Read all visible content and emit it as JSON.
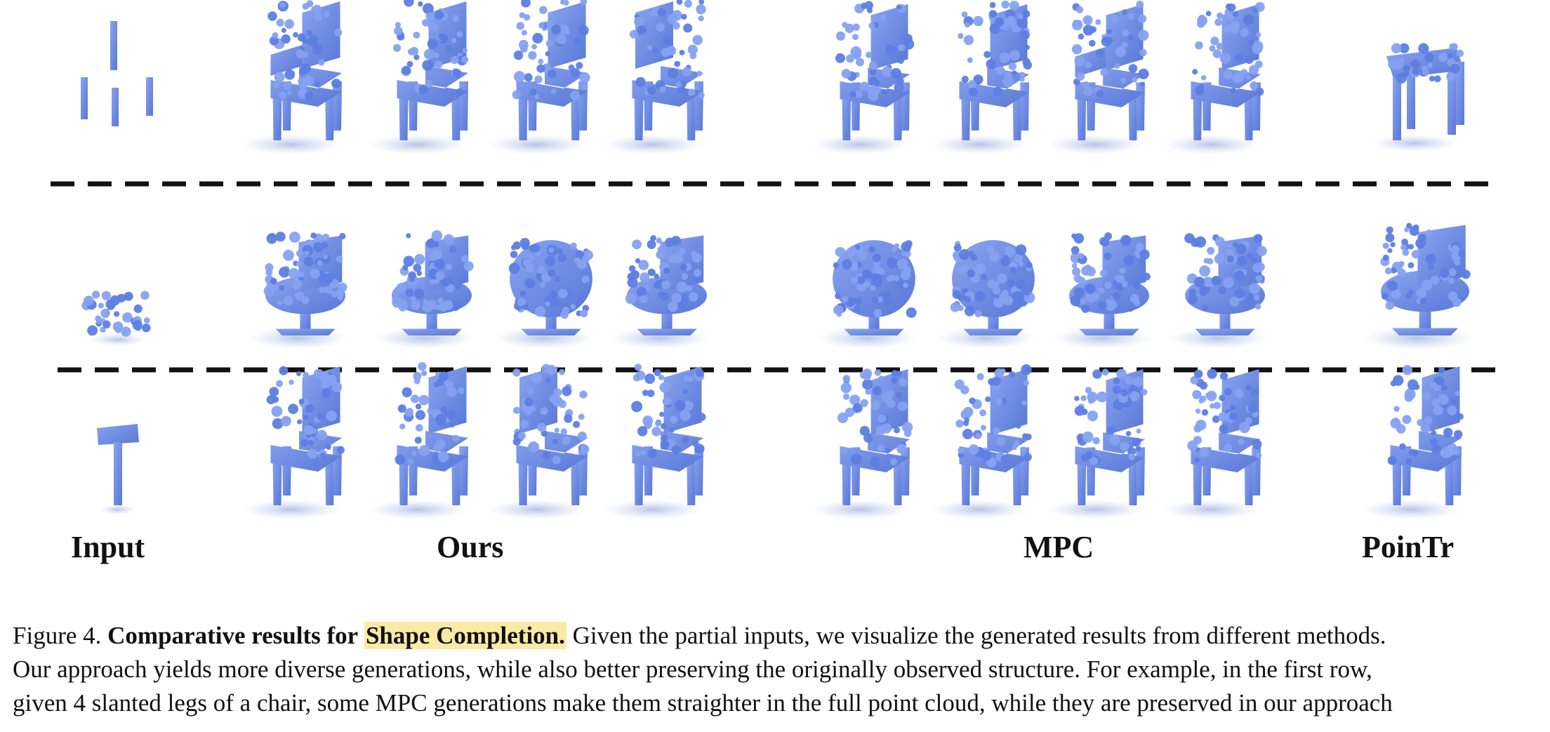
{
  "figure": {
    "column_labels": {
      "input": "Input",
      "ours": "Ours",
      "mpc": "MPC",
      "poin_tr": "PoinTr"
    },
    "point_cloud_color": "#6f8fe6",
    "shadow_color": "#b9c4e6",
    "separator_color": "#111111",
    "rows": [
      {
        "input": "legs",
        "ours": [
          "armchair",
          "chair",
          "chair",
          "box-chair"
        ],
        "mpc": [
          "chair",
          "chair",
          "armchair",
          "chair"
        ],
        "poin_tr": "table"
      },
      {
        "input": "swivel-base",
        "ours": [
          "swivel",
          "swivel",
          "round",
          "swivel"
        ],
        "mpc": [
          "tub",
          "tub",
          "swivel",
          "swivel"
        ],
        "poin_tr": "swivel"
      },
      {
        "input": "seat-stem",
        "ours": [
          "chair",
          "chair",
          "box-chair",
          "chair"
        ],
        "mpc": [
          "chair",
          "chair",
          "chair",
          "chair"
        ],
        "poin_tr": "chair"
      }
    ]
  },
  "caption": {
    "figure_number": "Figure 4.",
    "title_bold": "Comparative results for",
    "title_highlight": "Shape Completion.",
    "line1_rest": "Given the partial inputs, we visualize the generated results from different methods.",
    "line2": "Our approach yields more diverse generations, while also better preserving the originally observed structure. For example, in the first row,",
    "line3": "given 4 slanted legs of a chair, some MPC generations make them straighter in the full point cloud, while they are preserved in our approach"
  }
}
